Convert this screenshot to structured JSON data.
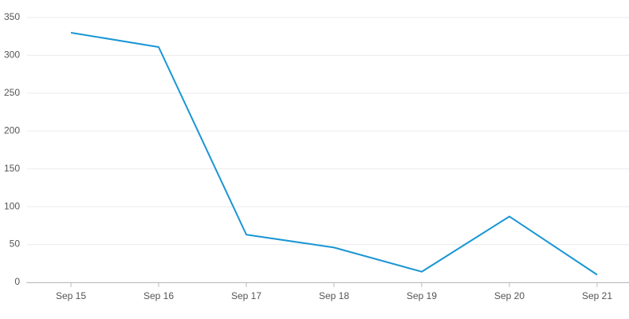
{
  "chart_data": {
    "type": "line",
    "categories": [
      "Sep 15",
      "Sep 16",
      "Sep 17",
      "Sep 18",
      "Sep 19",
      "Sep 20",
      "Sep 21"
    ],
    "values": [
      330,
      311,
      63,
      46,
      14,
      87,
      10
    ],
    "color": "#1a96d4",
    "ylim": [
      0,
      350
    ],
    "yticks": [
      0,
      50,
      100,
      150,
      200,
      250,
      300,
      350
    ],
    "grid": true
  }
}
